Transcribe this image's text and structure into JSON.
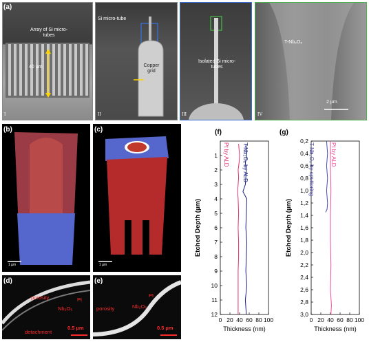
{
  "panel_a": {
    "label": "(a)",
    "sub1": {
      "text": "Array of Si micro-tubes",
      "scale": "40 µm",
      "roman": "I"
    },
    "sub2": {
      "label_tube": "Si micro-tube",
      "label_grid": "Copper grid",
      "roman": "II"
    },
    "sub3": {
      "text": "Isolated Si micro-tubes",
      "roman": "III"
    },
    "sub4": {
      "material": "T-Nb₂O₅",
      "scale": "2 µm",
      "roman": "IV"
    }
  },
  "panel_b": {
    "label": "(b)",
    "scale": "1 µm"
  },
  "panel_c": {
    "label": "(c)",
    "scale": "1 µm"
  },
  "panel_d": {
    "label": "(d)",
    "pt": "Pt",
    "porosity": "porosity",
    "nb2o5": "Nb₂O₅",
    "detachment": "detachment",
    "scale": "0.5 µm"
  },
  "panel_e": {
    "label": "(e)",
    "porosity": "porosity",
    "nb2o5": "Nb₂O₅",
    "pt": "Pt",
    "scale": "0.5 µm"
  },
  "colors": {
    "pt": "#e0306a",
    "nb": "#1a1f7a",
    "nb_sputter": "#4a4aa8",
    "pink": "#ee4d9a",
    "frame_blue": "#3a6fd8",
    "frame_green": "#49b34a"
  },
  "chart_data": [
    {
      "label": "(f)",
      "type": "line",
      "xlabel": "Thickness (nm)",
      "ylabel": "Etched Depth (µm)",
      "xlim": [
        0,
        100
      ],
      "ylim": [
        0,
        12
      ],
      "xticks": [
        "0",
        "20",
        "40",
        "60",
        "80",
        "100"
      ],
      "yticks": [
        "1",
        "2",
        "3",
        "4",
        "5",
        "6",
        "7",
        "8",
        "9",
        "10",
        "11",
        "12"
      ],
      "series": [
        {
          "name": "Pt by ALD",
          "color": "#e0306a",
          "y": [
            0.2,
            1,
            1.5,
            2,
            2.5,
            3,
            3.5,
            4,
            5,
            6,
            7,
            8,
            9,
            10,
            11,
            12
          ],
          "x": [
            38,
            40,
            39,
            37,
            38,
            37,
            36,
            37,
            38,
            37,
            38,
            38,
            37,
            37,
            37,
            37
          ]
        },
        {
          "name": "T-Nb₂O₅ by ALD",
          "color": "#1a1f7a",
          "y": [
            0.2,
            1,
            1.5,
            2,
            2.5,
            3,
            3.5,
            4,
            5,
            6,
            7,
            8,
            9,
            10,
            11,
            12
          ],
          "x": [
            53,
            55,
            52,
            54,
            53,
            52,
            47,
            55,
            54,
            53,
            55,
            54,
            53,
            55,
            52,
            54
          ]
        }
      ]
    },
    {
      "label": "(g)",
      "type": "line",
      "xlabel": "Thickness (nm)",
      "ylabel": "Etched Depth (µm)",
      "xlim": [
        0,
        100
      ],
      "ylim": [
        0.2,
        3.0
      ],
      "xticks": [
        "0",
        "20",
        "40",
        "60",
        "80",
        "100"
      ],
      "yticks": [
        "0,2",
        "0,4",
        "0,6",
        "0,8",
        "1,0",
        "1,2",
        "1,4",
        "1,6",
        "1,8",
        "2,0",
        "2,2",
        "2,4",
        "2,6",
        "2,8",
        "3,0"
      ],
      "series": [
        {
          "name": "T-Nb₂O₅ by sputtering",
          "color": "#4a4aa8",
          "y": [
            0.2,
            0.3,
            0.4,
            0.5,
            0.6,
            0.7,
            0.8,
            0.9,
            1.0,
            1.1,
            1.2,
            1.3,
            1.35
          ],
          "x": [
            32,
            33,
            34,
            33,
            32,
            33,
            34,
            33,
            32,
            33,
            34,
            33,
            30
          ]
        },
        {
          "name": "Pt by ALD",
          "color": "#ee4d9a",
          "y": [
            0.2,
            0.6,
            1.0,
            1.4,
            1.8,
            2.2,
            2.6,
            2.85,
            3.0
          ],
          "x": [
            40,
            40,
            41,
            40,
            40,
            41,
            40,
            42,
            41
          ]
        }
      ]
    }
  ]
}
